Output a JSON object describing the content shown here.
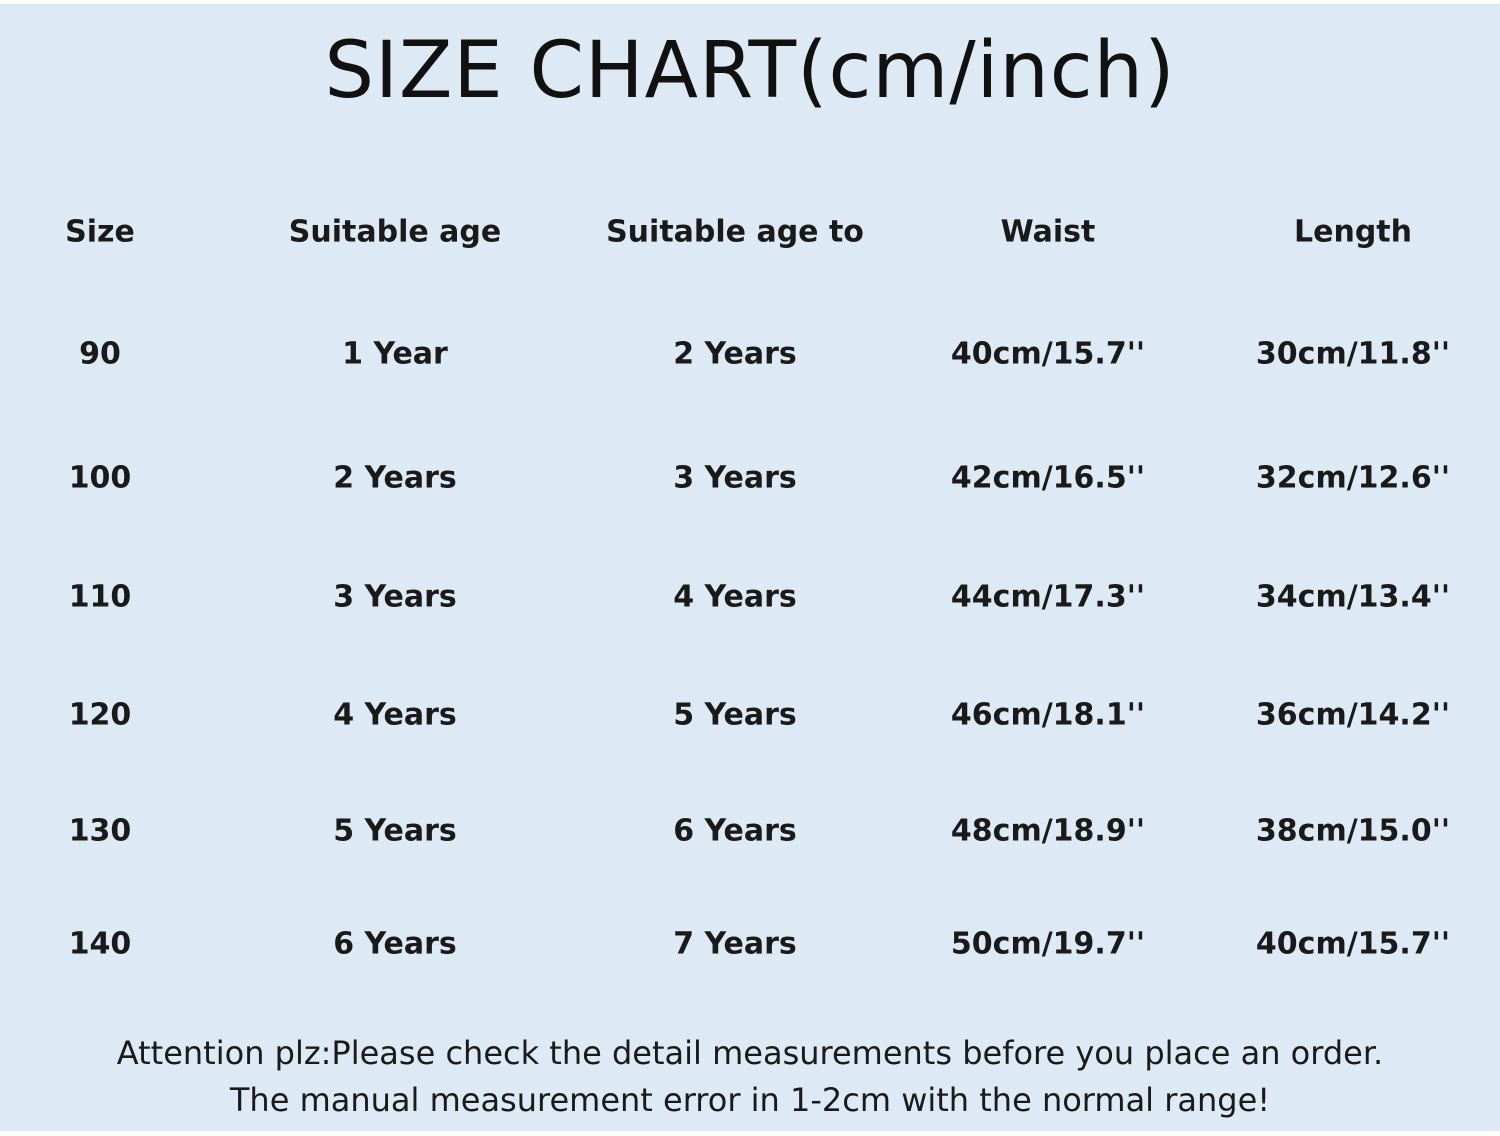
{
  "title": "SIZE CHART(cm/inch)",
  "table": {
    "headers": [
      "Size",
      "Suitable age",
      "Suitable age to",
      "Waist",
      "Length"
    ],
    "rows": [
      [
        "90",
        "1 Year",
        "2 Years",
        "40cm/15.7''",
        "30cm/11.8''"
      ],
      [
        "100",
        "2 Years",
        "3 Years",
        "42cm/16.5''",
        "32cm/12.6''"
      ],
      [
        "110",
        "3 Years",
        "4 Years",
        "44cm/17.3''",
        "34cm/13.4''"
      ],
      [
        "120",
        "4 Years",
        "5 Years",
        "46cm/18.1''",
        "36cm/14.2''"
      ],
      [
        "130",
        "5 Years",
        "6 Years",
        "48cm/18.9''",
        "38cm/15.0''"
      ],
      [
        "140",
        "6 Years",
        "7 Years",
        "50cm/19.7''",
        "40cm/15.7''"
      ]
    ]
  },
  "footer": {
    "line1": "Attention plz:Please check the detail measurements before you place an order.",
    "line2": "The manual measurement error in 1-2cm with the normal range!"
  },
  "colors": {
    "background": "#dde9f5",
    "text": "#1a1a1a"
  }
}
